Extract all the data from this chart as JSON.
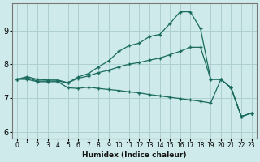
{
  "xlabel": "Humidex (Indice chaleur)",
  "background_color": "#ceeaea",
  "grid_color": "#aed0d0",
  "line_color": "#1a6b5e",
  "xlim": [
    -0.5,
    23.5
  ],
  "ylim": [
    5.8,
    9.8
  ],
  "xticks": [
    0,
    1,
    2,
    3,
    4,
    5,
    6,
    7,
    8,
    9,
    10,
    11,
    12,
    13,
    14,
    15,
    16,
    17,
    18,
    19,
    20,
    21,
    22,
    23
  ],
  "yticks": [
    6,
    7,
    8,
    9
  ],
  "line1_x": [
    0,
    1,
    2,
    3,
    4,
    5,
    6,
    7,
    8,
    9,
    10,
    11,
    12,
    13,
    14,
    15,
    16,
    17,
    18,
    19,
    20,
    21,
    22,
    23
  ],
  "line1_y": [
    7.55,
    7.63,
    7.55,
    7.53,
    7.53,
    7.45,
    7.62,
    7.72,
    7.92,
    8.1,
    8.38,
    8.55,
    8.62,
    8.82,
    8.88,
    9.2,
    9.55,
    9.55,
    9.05,
    7.55,
    7.55,
    7.3,
    6.45,
    6.55
  ],
  "line2_x": [
    0,
    1,
    2,
    3,
    4,
    5,
    6,
    7,
    8,
    9,
    10,
    11,
    12,
    13,
    14,
    15,
    16,
    17,
    18,
    19,
    20,
    21,
    22,
    23
  ],
  "line2_y": [
    7.55,
    7.6,
    7.5,
    7.5,
    7.5,
    7.45,
    7.58,
    7.65,
    7.75,
    7.82,
    7.92,
    8.0,
    8.05,
    8.12,
    8.18,
    8.28,
    8.38,
    8.5,
    8.5,
    7.55,
    7.55,
    7.3,
    6.45,
    6.55
  ],
  "line3_x": [
    0,
    1,
    2,
    3,
    4,
    5,
    6,
    7,
    8,
    9,
    10,
    11,
    12,
    13,
    14,
    15,
    16,
    17,
    18,
    19,
    20,
    21,
    22,
    23
  ],
  "line3_y": [
    7.55,
    7.55,
    7.48,
    7.48,
    7.48,
    7.3,
    7.28,
    7.32,
    7.28,
    7.25,
    7.22,
    7.18,
    7.15,
    7.1,
    7.06,
    7.02,
    6.98,
    6.94,
    6.9,
    6.85,
    7.55,
    7.3,
    6.45,
    6.55
  ]
}
